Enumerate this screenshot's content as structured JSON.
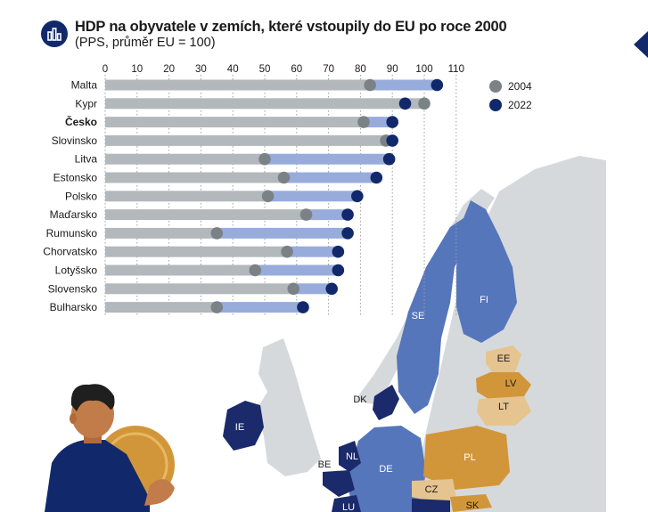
{
  "title": "HDP na obyvatele v zemích, které vstoupily do EU po roce 2000",
  "subtitle": "(PPS, průměr EU = 100)",
  "icons": {
    "title": "bar-chart-icon",
    "nav": "chevron-left-icon"
  },
  "colors": {
    "accent": "#11296b",
    "bar_gray": "#b2b8bc",
    "bar_blue": "#98acdc",
    "dot_2004": "#7b8286",
    "dot_2022": "#11296b",
    "map_blue": "#5576bb",
    "map_dark": "#1a2a6b",
    "map_gold": "#d2963a",
    "map_light_gold": "#e5c490",
    "map_gray": "#d6d9db"
  },
  "chart_data": {
    "type": "dumbbell",
    "title": "HDP na obyvatele v zemích, které vstoupily do EU po roce 2000",
    "subtitle": "(PPS, průměr EU = 100)",
    "xlim": [
      0,
      110
    ],
    "x_ticks": [
      "0",
      "10",
      "20",
      "30",
      "40",
      "50",
      "60",
      "70",
      "80",
      "90",
      "100",
      "110"
    ],
    "categories": [
      "Malta",
      "Kypr",
      "Česko",
      "Slovinsko",
      "Litva",
      "Estonsko",
      "Polsko",
      "Maďarsko",
      "Rumunsko",
      "Chorvatsko",
      "Lotyšsko",
      "Slovensko",
      "Bulharsko"
    ],
    "highlight": "Česko",
    "series": [
      {
        "name": "2004",
        "values": [
          83,
          100,
          81,
          88,
          50,
          56,
          51,
          63,
          35,
          57,
          47,
          59,
          35
        ]
      },
      {
        "name": "2022",
        "values": [
          104,
          94,
          90,
          90,
          89,
          85,
          79,
          76,
          76,
          73,
          73,
          71,
          62
        ]
      }
    ],
    "legend_position": "top-right",
    "grid": true
  },
  "legend": [
    {
      "label": "2004"
    },
    {
      "label": "2022"
    }
  ],
  "map": {
    "labels": [
      "SE",
      "FI",
      "EE",
      "LV",
      "LT",
      "DK",
      "IE",
      "NL",
      "BE",
      "DE",
      "PL",
      "CZ",
      "SK",
      "LU"
    ]
  }
}
